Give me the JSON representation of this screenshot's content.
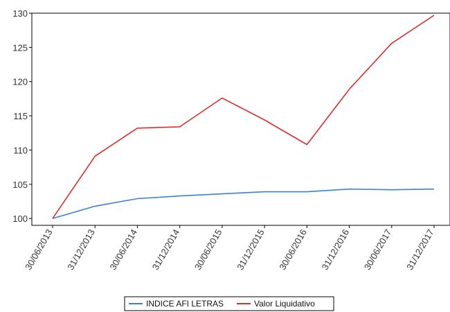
{
  "chart_data": {
    "type": "line",
    "title": "",
    "xlabel": "",
    "ylabel": "",
    "categories": [
      "30/06/2013",
      "31/12/2013",
      "30/06/2014",
      "31/12/2014",
      "30/06/2015",
      "31/12/2015",
      "30/06/2016",
      "31/12/2016",
      "30/06/2017",
      "31/12/2017"
    ],
    "ylim": [
      99,
      130
    ],
    "yticks": [
      100,
      105,
      110,
      115,
      120,
      125,
      130
    ],
    "grid": false,
    "legend_position": "bottom",
    "series": [
      {
        "name": "INDICE AFI LETRAS",
        "color": "#3a7fd5",
        "values": [
          100,
          101.8,
          102.9,
          103.3,
          103.6,
          103.9,
          103.9,
          104.3,
          104.2,
          104.3
        ]
      },
      {
        "name": "Valor Liquidativo",
        "color": "#e02b2b",
        "values": [
          100,
          109.1,
          113.2,
          113.4,
          117.6,
          114.4,
          110.8,
          118.9,
          125.6,
          129.7
        ]
      }
    ]
  }
}
